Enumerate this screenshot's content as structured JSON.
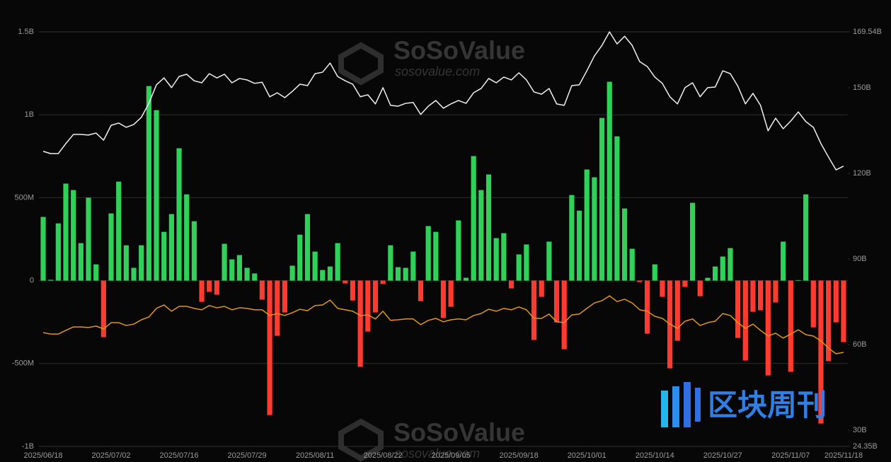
{
  "chart_data": {
    "type": "bar",
    "categories": [
      "2025/06/18",
      null,
      null,
      null,
      null,
      null,
      null,
      null,
      null,
      "2025/07/02",
      null,
      null,
      null,
      null,
      null,
      null,
      null,
      null,
      "2025/07/16",
      null,
      null,
      null,
      null,
      null,
      null,
      null,
      null,
      "2025/07/29",
      null,
      null,
      null,
      null,
      null,
      null,
      null,
      null,
      "2025/08/11",
      null,
      null,
      null,
      null,
      null,
      null,
      null,
      null,
      "2025/08/22",
      null,
      null,
      null,
      null,
      null,
      null,
      null,
      null,
      "2025/09/05",
      null,
      null,
      null,
      null,
      null,
      null,
      null,
      null,
      "2025/09/18",
      null,
      null,
      null,
      null,
      null,
      null,
      null,
      null,
      "2025/10/01",
      null,
      null,
      null,
      null,
      null,
      null,
      null,
      null,
      "2025/10/14",
      null,
      null,
      null,
      null,
      null,
      null,
      null,
      null,
      "2025/10/27",
      null,
      null,
      null,
      null,
      null,
      null,
      null,
      null,
      "2025/11/07",
      null,
      null,
      null,
      null,
      null,
      null,
      "2025/11/18"
    ],
    "series": [
      {
        "type": "bar",
        "color": "#2fd159",
        "negative_color": "#ff3b30",
        "values": [
          384000000,
          5000000,
          345000000,
          585000000,
          546000000,
          226000000,
          500000000,
          98000000,
          -341000000,
          405000000,
          597000000,
          213000000,
          77000000,
          213000000,
          1173000000,
          1028000000,
          294000000,
          401000000,
          798000000,
          520000000,
          358000000,
          -128000000,
          -68000000,
          -85000000,
          222000000,
          128000000,
          154000000,
          77000000,
          43000000,
          -115000000,
          -811000000,
          -333000000,
          -192000000,
          90000000,
          277000000,
          401000000,
          175000000,
          64000000,
          85000000,
          226000000,
          -17000000,
          -120000000,
          -520000000,
          -307000000,
          -192000000,
          -21000000,
          213000000,
          81000000,
          77000000,
          175000000,
          -124000000,
          329000000,
          294000000,
          -226000000,
          -158000000,
          363000000,
          17000000,
          751000000,
          546000000,
          640000000,
          256000000,
          286000000,
          -47000000,
          158000000,
          218000000,
          -358000000,
          -98000000,
          235000000,
          -252000000,
          -414000000,
          516000000,
          422000000,
          670000000,
          623000000,
          981000000,
          1199000000,
          870000000,
          435000000,
          192000000,
          -9000000,
          -320000000,
          98000000,
          -98000000,
          -529000000,
          -363000000,
          -38000000,
          469000000,
          -94000000,
          17000000,
          85000000,
          145000000,
          196000000,
          -346000000,
          -482000000,
          -188000000,
          -179000000,
          -572000000,
          -132000000,
          235000000,
          -550000000,
          3000000,
          520000000,
          -282000000,
          -862000000,
          -486000000,
          -252000000,
          -371000000
        ]
      },
      {
        "type": "line",
        "axis": "y2",
        "color": "#f0f0f0",
        "values": [
          127.7,
          126.9,
          126.9,
          130.4,
          133.6,
          133.6,
          133.4,
          134.1,
          131.6,
          136.8,
          137.6,
          136.1,
          137.1,
          139.6,
          144.5,
          151.0,
          153.4,
          150.0,
          153.9,
          154.7,
          152.4,
          151.7,
          154.9,
          153.4,
          154.7,
          151.7,
          153.2,
          152.7,
          151.5,
          151.9,
          146.8,
          148.2,
          146.5,
          148.7,
          151.2,
          150.7,
          154.9,
          155.4,
          158.6,
          153.9,
          152.4,
          151.2,
          146.8,
          147.5,
          144.3,
          150.0,
          143.8,
          143.5,
          144.5,
          144.8,
          140.6,
          143.5,
          145.5,
          142.8,
          144.3,
          145.5,
          144.5,
          148.2,
          149.7,
          153.2,
          151.7,
          153.7,
          152.7,
          155.2,
          152.7,
          148.5,
          147.7,
          149.7,
          144.3,
          143.8,
          150.7,
          151.0,
          155.9,
          161.1,
          164.8,
          169.54,
          165.3,
          168.0,
          164.8,
          159.1,
          157.4,
          153.7,
          151.5,
          146.8,
          144.3,
          150.0,
          151.7,
          146.8,
          150.0,
          150.2,
          155.9,
          154.9,
          150.5,
          144.3,
          148.0,
          143.8,
          134.9,
          139.3,
          135.6,
          138.3,
          141.5,
          138.1,
          136.1,
          130.4,
          125.7,
          121.2,
          122.5
        ]
      },
      {
        "type": "line",
        "axis": "y2",
        "color": "#e0961c",
        "values": [
          64.2,
          63.7,
          63.7,
          65.0,
          66.2,
          66.2,
          66.0,
          66.5,
          65.5,
          67.7,
          67.7,
          66.7,
          67.2,
          68.7,
          69.7,
          72.7,
          73.9,
          71.7,
          73.4,
          73.4,
          72.7,
          72.2,
          73.7,
          72.9,
          73.4,
          72.2,
          72.9,
          72.7,
          72.2,
          72.2,
          70.2,
          70.9,
          70.2,
          71.2,
          72.4,
          71.9,
          73.7,
          73.9,
          75.6,
          72.7,
          72.2,
          71.7,
          70.2,
          70.4,
          69.0,
          71.7,
          68.5,
          68.7,
          69.0,
          69.0,
          67.0,
          68.5,
          69.2,
          68.0,
          68.7,
          69.0,
          68.7,
          70.2,
          70.9,
          72.4,
          71.7,
          72.7,
          72.2,
          73.2,
          72.2,
          69.2,
          69.2,
          70.7,
          68.0,
          67.7,
          70.4,
          70.7,
          72.7,
          74.6,
          75.4,
          77.1,
          75.1,
          75.9,
          74.6,
          72.2,
          71.7,
          69.9,
          69.2,
          67.2,
          65.7,
          68.2,
          69.0,
          66.7,
          67.7,
          68.2,
          70.9,
          70.2,
          67.7,
          65.7,
          67.2,
          65.0,
          63.0,
          64.0,
          62.3,
          63.7,
          65.2,
          63.5,
          63.0,
          61.3,
          58.8,
          56.8,
          57.3
        ]
      }
    ],
    "ylim": [
      -1000000000,
      1500000000
    ],
    "yticks": [
      {
        "value": -1000000000,
        "label": "-1B"
      },
      {
        "value": -500000000,
        "label": "-500M"
      },
      0,
      {
        "value": 500000000,
        "label": "500M"
      },
      {
        "value": 1000000000,
        "label": "1B"
      },
      {
        "value": 1500000000,
        "label": "1.5B"
      }
    ],
    "y2lim": [
      24.35,
      169.54
    ],
    "y2ticks": [
      {
        "value": 24.35,
        "label": "24.35B"
      },
      {
        "value": 30,
        "label": "30B"
      },
      {
        "value": 60,
        "label": "60B"
      },
      {
        "value": 90,
        "label": "90B"
      },
      {
        "value": 120,
        "label": "120B"
      },
      {
        "value": 150,
        "label": "150B"
      },
      {
        "value": 169.54,
        "label": "169.54B"
      }
    ],
    "grid": true,
    "watermark": {
      "brand": "SoSoValue",
      "site": "sosovalue.com",
      "logo": "区块周刊"
    }
  }
}
